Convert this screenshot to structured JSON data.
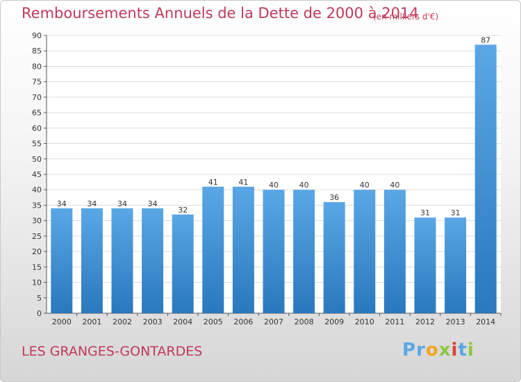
{
  "header": {
    "title": "Remboursements Annuels de la Dette de 2000 à 2014",
    "unit": "(en milliers d'€)"
  },
  "footer": {
    "location": "LES GRANGES-GONTARDES",
    "logo_text": "Proxiti"
  },
  "colors": {
    "title": "#c0395a",
    "bar_light": "#5aa7e6",
    "bar_dark": "#2a78bd",
    "logo_letters": [
      "#5aa7e6",
      "#5aa7e6",
      "#f2a51e",
      "#8cc63f",
      "#d8432f",
      "#5aa7e6",
      "#8cc63f"
    ]
  },
  "chart_data": {
    "type": "bar",
    "title": "Remboursements Annuels de la Dette de 2000 à 2014",
    "xlabel": "",
    "ylabel": "",
    "categories": [
      "2000",
      "2001",
      "2002",
      "2003",
      "2004",
      "2005",
      "2006",
      "2007",
      "2008",
      "2009",
      "2010",
      "2011",
      "2012",
      "2013",
      "2014"
    ],
    "values": [
      34,
      34,
      34,
      34,
      32,
      41,
      41,
      40,
      40,
      36,
      40,
      40,
      31,
      31,
      87
    ],
    "ylim": [
      0,
      90
    ],
    "yticks": [
      0,
      5,
      10,
      15,
      20,
      25,
      30,
      35,
      40,
      45,
      50,
      55,
      60,
      65,
      70,
      75,
      80,
      85,
      90
    ],
    "grid": true,
    "legend": "none"
  }
}
